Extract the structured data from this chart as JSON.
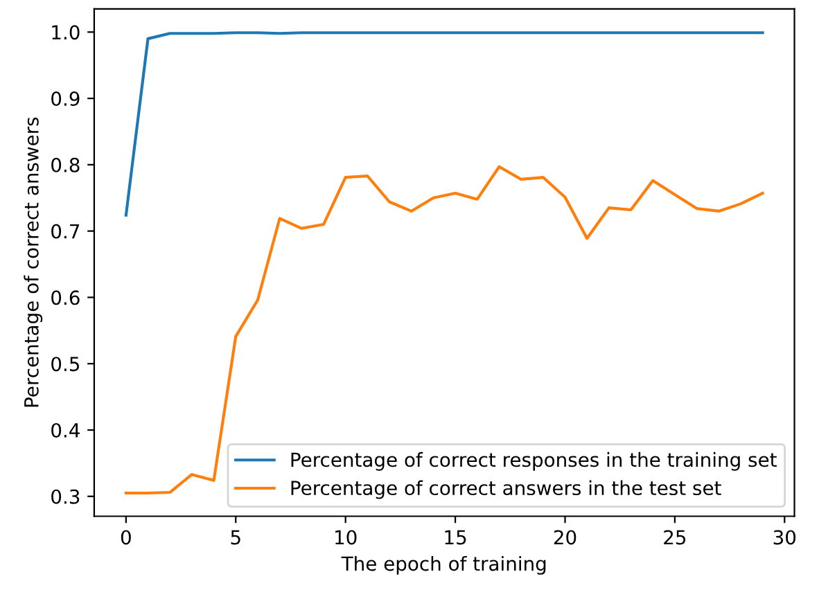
{
  "chart_data": {
    "type": "line",
    "xlabel": "The epoch of training",
    "ylabel": "Percentage of correct answers",
    "x": [
      0,
      1,
      2,
      3,
      4,
      5,
      6,
      7,
      8,
      9,
      10,
      11,
      12,
      13,
      14,
      15,
      16,
      17,
      18,
      19,
      20,
      21,
      22,
      23,
      24,
      25,
      26,
      27,
      28,
      29
    ],
    "series": [
      {
        "name": "Percentage of correct responses in the training set",
        "color": "#1f77b4",
        "values": [
          0.724,
          0.99,
          0.998,
          0.998,
          0.998,
          0.999,
          0.999,
          0.998,
          0.999,
          0.999,
          0.999,
          0.999,
          0.999,
          0.999,
          0.999,
          0.999,
          0.999,
          0.999,
          0.999,
          0.999,
          0.999,
          0.999,
          0.999,
          0.999,
          0.999,
          0.999,
          0.999,
          0.999,
          0.999,
          0.999
        ]
      },
      {
        "name": "Percentage of correct answers in the test set",
        "color": "#ff7f0e",
        "values": [
          0.305,
          0.305,
          0.306,
          0.333,
          0.324,
          0.541,
          0.596,
          0.719,
          0.704,
          0.71,
          0.781,
          0.783,
          0.744,
          0.73,
          0.75,
          0.757,
          0.748,
          0.797,
          0.778,
          0.781,
          0.751,
          0.689,
          0.735,
          0.732,
          0.776,
          0.755,
          0.734,
          0.73,
          0.741,
          0.757
        ]
      }
    ],
    "xlim": [
      -1.45,
      30.45
    ],
    "xticks": [
      0,
      5,
      10,
      15,
      20,
      25,
      30
    ],
    "ylim": [
      0.27,
      1.035
    ],
    "yticks": [
      {
        "value": 0.3,
        "label": "0.3"
      },
      {
        "value": 0.4,
        "label": "0.4"
      },
      {
        "value": 0.5,
        "label": "0.5"
      },
      {
        "value": 0.6,
        "label": "0.6"
      },
      {
        "value": 0.7,
        "label": "0.7"
      },
      {
        "value": 0.8,
        "label": "0.8"
      },
      {
        "value": 0.9,
        "label": "0.9"
      },
      {
        "value": 1.0,
        "label": "1.0"
      }
    ],
    "grid": false,
    "legend": "bottom right"
  }
}
